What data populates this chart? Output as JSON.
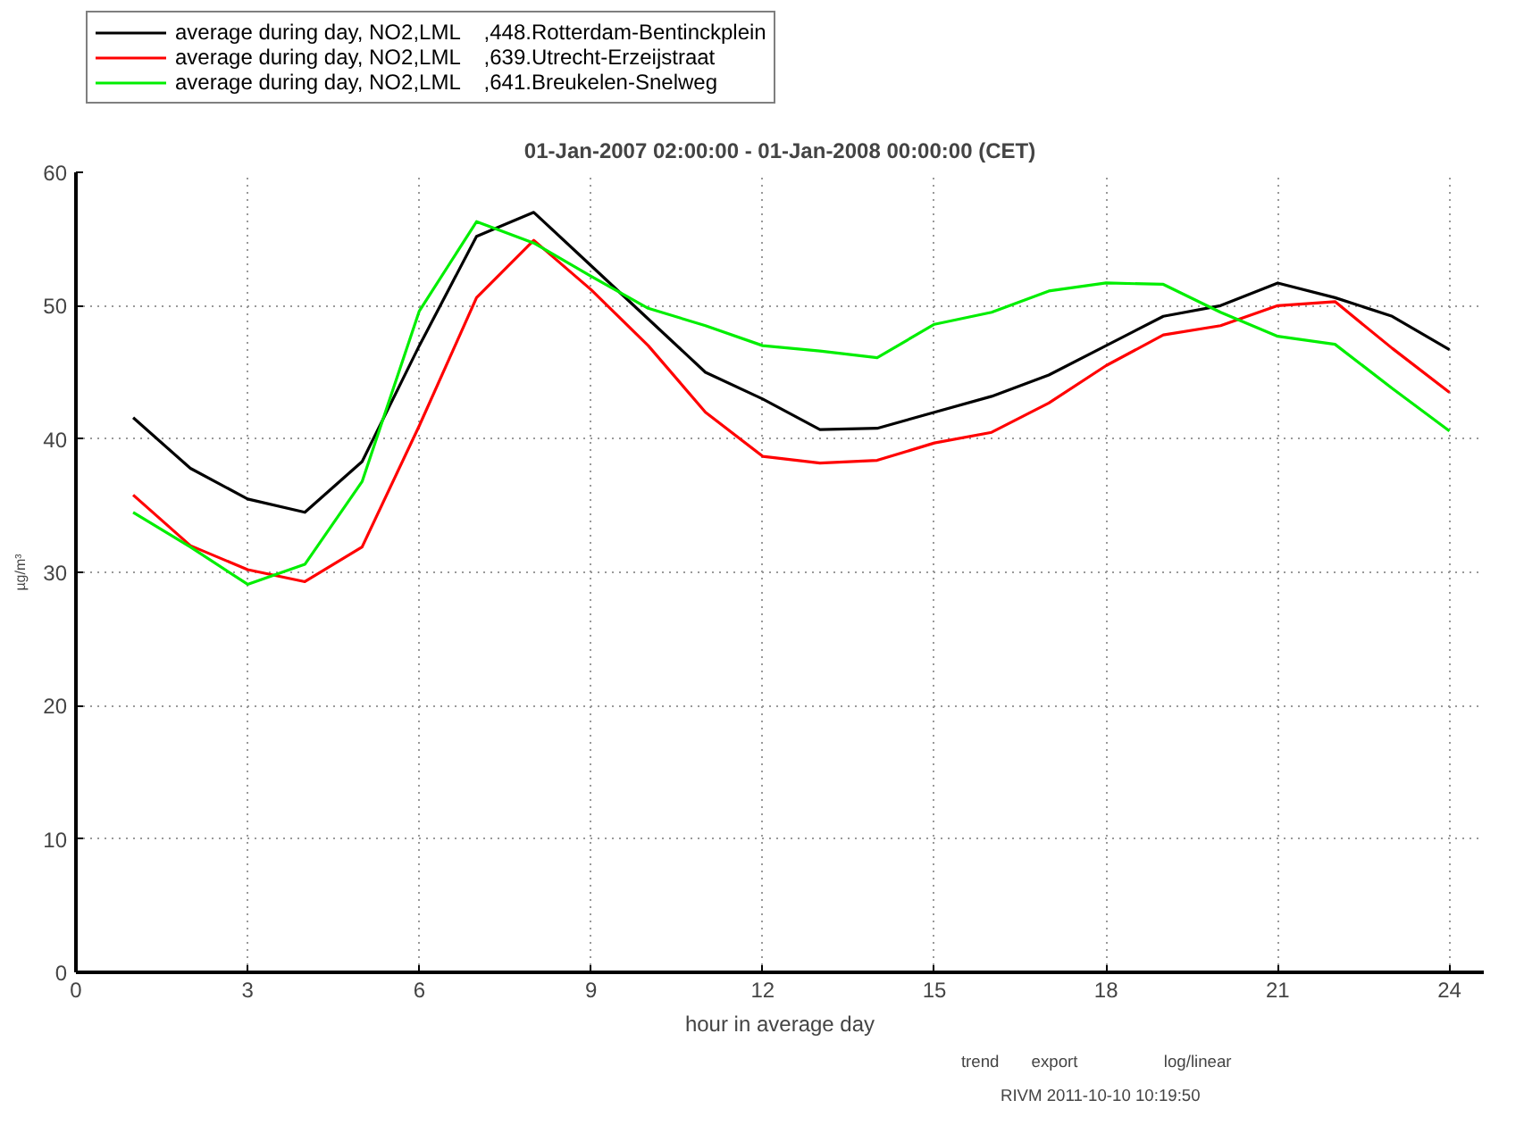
{
  "chart_data": {
    "type": "line",
    "title": "01-Jan-2007 02:00:00 - 01-Jan-2008 00:00:00 (CET)",
    "xlabel": "hour in average day",
    "ylabel": "µg/m³",
    "x": [
      1,
      2,
      3,
      4,
      5,
      6,
      7,
      8,
      9,
      10,
      11,
      12,
      13,
      14,
      15,
      16,
      17,
      18,
      19,
      20,
      21,
      22,
      23,
      24
    ],
    "series": [
      {
        "name": "average during day, NO2,LML    ,448.Rotterdam-Bentinckplein",
        "color": "#000000",
        "values": [
          41.6,
          37.8,
          35.5,
          34.5,
          38.3,
          47,
          55.2,
          57,
          53,
          49,
          45,
          43,
          40.7,
          40.8,
          42,
          43.2,
          44.8,
          47,
          49.2,
          50,
          51.7,
          50.6,
          49.2,
          46.7
        ]
      },
      {
        "name": "average during day, NO2,LML    ,639.Utrecht-Erzeijstraat",
        "color": "#ff0000",
        "values": [
          35.8,
          32,
          30.2,
          29.3,
          31.9,
          41,
          50.6,
          54.9,
          51.2,
          47,
          42,
          38.7,
          38.2,
          38.4,
          39.7,
          40.5,
          42.7,
          45.5,
          47.8,
          48.5,
          50,
          50.3,
          46.8,
          43.5
        ]
      },
      {
        "name": "average during day, NO2,LML    ,641.Breukelen-Snelweg",
        "color": "#00ee00",
        "values": [
          34.5,
          31.9,
          29.1,
          30.6,
          36.8,
          49.6,
          56.3,
          54.7,
          52.2,
          49.8,
          48.5,
          47,
          46.6,
          46.1,
          48.6,
          49.5,
          51.1,
          51.7,
          51.6,
          49.5,
          47.7,
          47.1,
          43.8,
          40.6
        ]
      }
    ],
    "xlim": [
      0,
      24.6
    ],
    "ylim": [
      0,
      60
    ],
    "xticks": [
      0,
      3,
      6,
      9,
      12,
      15,
      18,
      21,
      24
    ],
    "yticks": [
      0,
      10,
      20,
      30,
      40,
      50,
      60
    ],
    "grid": true,
    "legend": "top left",
    "marker": "none",
    "line_style": "solid",
    "annotations": [
      "trend",
      "export",
      "log/linear",
      "RIVM 2011-10-10 10:19:50"
    ]
  }
}
